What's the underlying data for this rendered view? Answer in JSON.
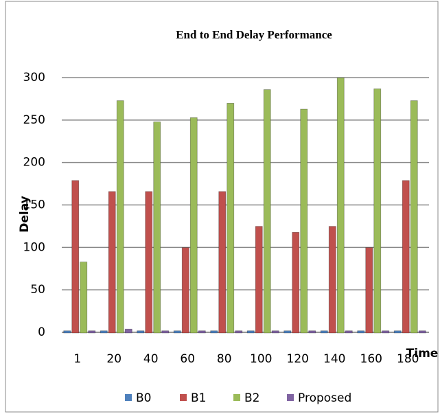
{
  "chart_data": {
    "type": "bar",
    "title": "End to End Delay Performance",
    "x_label": "Time",
    "y_label": "Delay",
    "categories": [
      "1",
      "20",
      "40",
      "60",
      "80",
      "100",
      "120",
      "140",
      "160",
      "180"
    ],
    "series": [
      {
        "name": "B0",
        "color": "#4f81bd",
        "values": [
          1,
          1,
          1,
          1,
          1,
          1,
          1,
          1,
          1,
          1
        ]
      },
      {
        "name": "B1",
        "color": "#c0504d",
        "values": [
          178,
          165,
          165,
          99,
          165,
          124,
          117,
          124,
          99,
          178
        ]
      },
      {
        "name": "B2",
        "color": "#9bbb59",
        "values": [
          82,
          272,
          247,
          252,
          269,
          285,
          262,
          299,
          286,
          272
        ]
      },
      {
        "name": "Proposed",
        "color": "#8064a2",
        "values": [
          1,
          3,
          1,
          1,
          1,
          1,
          1,
          1,
          1,
          1
        ]
      }
    ],
    "ylim": [
      0,
      300
    ],
    "yticks": [
      0,
      50,
      100,
      150,
      200,
      250,
      300
    ],
    "grid": true,
    "legend": "bottom"
  }
}
